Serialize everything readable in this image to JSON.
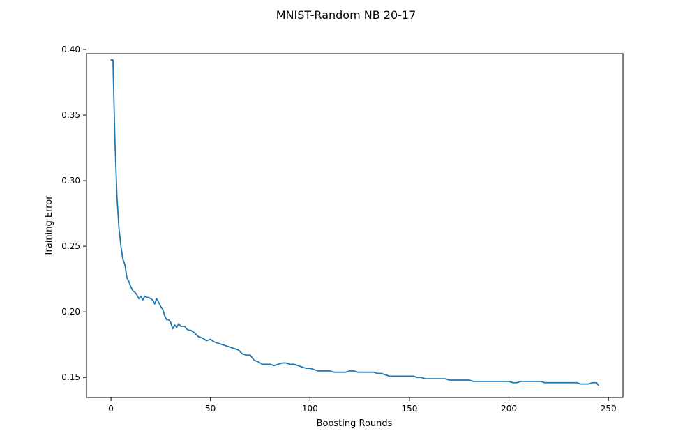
{
  "chart_data": {
    "type": "line",
    "title": "MNIST-Random NB 20-17",
    "xlabel": "Boosting Rounds",
    "ylabel": "Training Error",
    "xlim": [
      -12.3,
      257.3
    ],
    "ylim": [
      0.1347,
      0.3968
    ],
    "xticks": [
      0,
      50,
      100,
      150,
      200,
      250
    ],
    "yticks": [
      0.15,
      0.2,
      0.25,
      0.3,
      0.35,
      0.4
    ],
    "xtick_labels": [
      "0",
      "50",
      "100",
      "150",
      "200",
      "250"
    ],
    "ytick_labels": [
      "0.15",
      "0.20",
      "0.25",
      "0.30",
      "0.35",
      "0.40"
    ],
    "grid": false,
    "line_color": "#1f77b4",
    "series": [
      {
        "x": [
          0,
          1,
          2,
          3,
          4,
          5,
          6,
          7,
          8,
          9,
          10,
          11,
          12,
          13,
          14,
          15,
          16,
          17,
          18,
          19,
          20,
          21,
          22,
          23,
          24,
          25,
          26,
          27,
          28,
          29,
          30,
          31,
          32,
          33,
          34,
          35,
          36,
          37,
          38,
          39,
          40,
          42,
          44,
          46,
          48,
          50,
          52,
          54,
          56,
          58,
          60,
          62,
          64,
          66,
          68,
          70,
          72,
          74,
          76,
          78,
          80,
          82,
          84,
          86,
          88,
          90,
          92,
          94,
          96,
          98,
          100,
          102,
          104,
          106,
          108,
          110,
          112,
          114,
          116,
          118,
          120,
          122,
          124,
          126,
          128,
          130,
          132,
          134,
          136,
          138,
          140,
          142,
          144,
          146,
          148,
          150,
          152,
          154,
          156,
          158,
          160,
          162,
          164,
          166,
          168,
          170,
          172,
          174,
          176,
          178,
          180,
          182,
          184,
          186,
          188,
          190,
          192,
          194,
          196,
          198,
          200,
          202,
          204,
          206,
          208,
          210,
          212,
          214,
          216,
          218,
          220,
          222,
          224,
          226,
          228,
          230,
          232,
          234,
          236,
          238,
          240,
          242,
          244,
          245
        ],
        "values": [
          0.392,
          0.392,
          0.33,
          0.288,
          0.264,
          0.25,
          0.24,
          0.236,
          0.226,
          0.223,
          0.219,
          0.216,
          0.215,
          0.213,
          0.21,
          0.212,
          0.209,
          0.212,
          0.211,
          0.211,
          0.21,
          0.209,
          0.206,
          0.21,
          0.207,
          0.204,
          0.202,
          0.197,
          0.194,
          0.194,
          0.192,
          0.187,
          0.19,
          0.188,
          0.191,
          0.189,
          0.189,
          0.189,
          0.187,
          0.186,
          0.186,
          0.184,
          0.181,
          0.18,
          0.178,
          0.179,
          0.177,
          0.176,
          0.175,
          0.174,
          0.173,
          0.172,
          0.171,
          0.168,
          0.167,
          0.167,
          0.163,
          0.162,
          0.16,
          0.16,
          0.16,
          0.159,
          0.16,
          0.161,
          0.161,
          0.16,
          0.16,
          0.159,
          0.158,
          0.157,
          0.157,
          0.156,
          0.155,
          0.155,
          0.155,
          0.155,
          0.154,
          0.154,
          0.154,
          0.154,
          0.155,
          0.155,
          0.154,
          0.154,
          0.154,
          0.154,
          0.154,
          0.153,
          0.153,
          0.152,
          0.151,
          0.151,
          0.151,
          0.151,
          0.151,
          0.151,
          0.151,
          0.15,
          0.15,
          0.149,
          0.149,
          0.149,
          0.149,
          0.149,
          0.149,
          0.148,
          0.148,
          0.148,
          0.148,
          0.148,
          0.148,
          0.147,
          0.147,
          0.147,
          0.147,
          0.147,
          0.147,
          0.147,
          0.147,
          0.147,
          0.147,
          0.146,
          0.146,
          0.147,
          0.147,
          0.147,
          0.147,
          0.147,
          0.147,
          0.146,
          0.146,
          0.146,
          0.146,
          0.146,
          0.146,
          0.146,
          0.146,
          0.146,
          0.145,
          0.145,
          0.145,
          0.146,
          0.146,
          0.144
        ]
      }
    ]
  }
}
